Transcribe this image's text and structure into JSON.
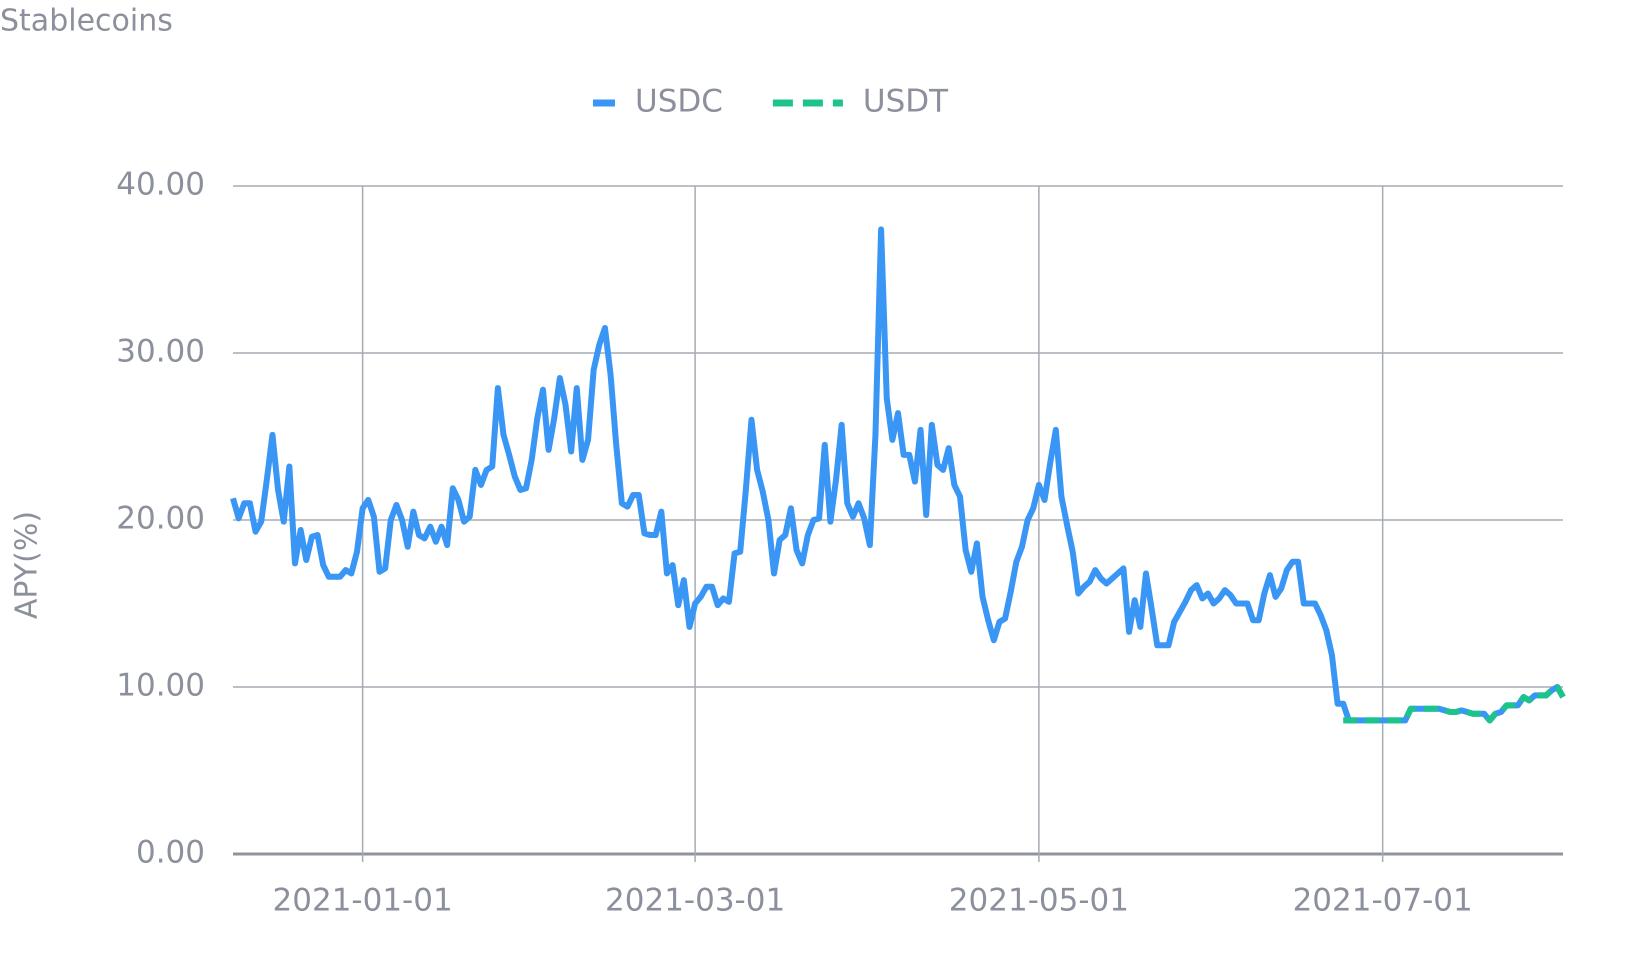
{
  "chart_data": {
    "type": "line",
    "title": "Stablecoins",
    "y_label": "APY(%)",
    "legend": "top",
    "grid": true,
    "xlim": [
      "2020-12-09",
      "2021-08-02"
    ],
    "xticks": [
      "2021-01-01",
      "2021-03-01",
      "2021-05-01",
      "2021-07-01"
    ],
    "ylim": [
      0,
      40
    ],
    "yticks": [
      {
        "value": 0,
        "label": "0.00"
      },
      {
        "value": 10,
        "label": "10.00"
      },
      {
        "value": 20,
        "label": "20.00"
      },
      {
        "value": 30,
        "label": "30.00"
      },
      {
        "value": 40,
        "label": "40.00"
      }
    ],
    "x": [
      "2020-12-09",
      "2020-12-10",
      "2020-12-11",
      "2020-12-12",
      "2020-12-13",
      "2020-12-14",
      "2020-12-15",
      "2020-12-16",
      "2020-12-17",
      "2020-12-18",
      "2020-12-19",
      "2020-12-20",
      "2020-12-21",
      "2020-12-22",
      "2020-12-23",
      "2020-12-24",
      "2020-12-25",
      "2020-12-26",
      "2020-12-27",
      "2020-12-28",
      "2020-12-29",
      "2020-12-30",
      "2020-12-31",
      "2021-01-01",
      "2021-01-02",
      "2021-01-03",
      "2021-01-04",
      "2021-01-05",
      "2021-01-06",
      "2021-01-07",
      "2021-01-08",
      "2021-01-09",
      "2021-01-10",
      "2021-01-11",
      "2021-01-12",
      "2021-01-13",
      "2021-01-14",
      "2021-01-15",
      "2021-01-16",
      "2021-01-17",
      "2021-01-18",
      "2021-01-19",
      "2021-01-20",
      "2021-01-21",
      "2021-01-22",
      "2021-01-23",
      "2021-01-24",
      "2021-01-25",
      "2021-01-26",
      "2021-01-27",
      "2021-01-28",
      "2021-01-29",
      "2021-01-30",
      "2021-01-31",
      "2021-02-01",
      "2021-02-02",
      "2021-02-03",
      "2021-02-04",
      "2021-02-05",
      "2021-02-06",
      "2021-02-07",
      "2021-02-08",
      "2021-02-09",
      "2021-02-10",
      "2021-02-11",
      "2021-02-12",
      "2021-02-13",
      "2021-02-14",
      "2021-02-15",
      "2021-02-16",
      "2021-02-17",
      "2021-02-18",
      "2021-02-19",
      "2021-02-20",
      "2021-02-21",
      "2021-02-22",
      "2021-02-23",
      "2021-02-24",
      "2021-02-25",
      "2021-02-26",
      "2021-02-27",
      "2021-02-28",
      "2021-03-01",
      "2021-03-02",
      "2021-03-03",
      "2021-03-04",
      "2021-03-05",
      "2021-03-06",
      "2021-03-07",
      "2021-03-08",
      "2021-03-09",
      "2021-03-10",
      "2021-03-11",
      "2021-03-12",
      "2021-03-13",
      "2021-03-14",
      "2021-03-15",
      "2021-03-16",
      "2021-03-17",
      "2021-03-18",
      "2021-03-19",
      "2021-03-20",
      "2021-03-21",
      "2021-03-22",
      "2021-03-23",
      "2021-03-24",
      "2021-03-25",
      "2021-03-26",
      "2021-03-27",
      "2021-03-28",
      "2021-03-29",
      "2021-03-30",
      "2021-03-31",
      "2021-04-01",
      "2021-04-02",
      "2021-04-03",
      "2021-04-04",
      "2021-04-05",
      "2021-04-06",
      "2021-04-07",
      "2021-04-08",
      "2021-04-09",
      "2021-04-10",
      "2021-04-11",
      "2021-04-12",
      "2021-04-13",
      "2021-04-14",
      "2021-04-15",
      "2021-04-16",
      "2021-04-17",
      "2021-04-18",
      "2021-04-19",
      "2021-04-20",
      "2021-04-21",
      "2021-04-22",
      "2021-04-23",
      "2021-04-24",
      "2021-04-25",
      "2021-04-26",
      "2021-04-27",
      "2021-04-28",
      "2021-04-29",
      "2021-04-30",
      "2021-05-01",
      "2021-05-02",
      "2021-05-03",
      "2021-05-04",
      "2021-05-05",
      "2021-05-06",
      "2021-05-07",
      "2021-05-08",
      "2021-05-09",
      "2021-05-10",
      "2021-05-11",
      "2021-05-12",
      "2021-05-13",
      "2021-05-14",
      "2021-05-15",
      "2021-05-16",
      "2021-05-17",
      "2021-05-18",
      "2021-05-19",
      "2021-05-20",
      "2021-05-21",
      "2021-05-22",
      "2021-05-23",
      "2021-05-24",
      "2021-05-25",
      "2021-05-26",
      "2021-05-27",
      "2021-05-28",
      "2021-05-29",
      "2021-05-30",
      "2021-05-31",
      "2021-06-01",
      "2021-06-02",
      "2021-06-03",
      "2021-06-04",
      "2021-06-05",
      "2021-06-06",
      "2021-06-07",
      "2021-06-08",
      "2021-06-09",
      "2021-06-10",
      "2021-06-11",
      "2021-06-12",
      "2021-06-13",
      "2021-06-14",
      "2021-06-15",
      "2021-06-16",
      "2021-06-17",
      "2021-06-18",
      "2021-06-19",
      "2021-06-20",
      "2021-06-21",
      "2021-06-22",
      "2021-06-23",
      "2021-06-24",
      "2021-06-25",
      "2021-06-26",
      "2021-06-27",
      "2021-06-28",
      "2021-06-29",
      "2021-06-30",
      "2021-07-01",
      "2021-07-02",
      "2021-07-03",
      "2021-07-04",
      "2021-07-05",
      "2021-07-06",
      "2021-07-07",
      "2021-07-08",
      "2021-07-09",
      "2021-07-10",
      "2021-07-11",
      "2021-07-12",
      "2021-07-13",
      "2021-07-14",
      "2021-07-15",
      "2021-07-16",
      "2021-07-17",
      "2021-07-18",
      "2021-07-19",
      "2021-07-20",
      "2021-07-21",
      "2021-07-22",
      "2021-07-23",
      "2021-07-24",
      "2021-07-25",
      "2021-07-26",
      "2021-07-27",
      "2021-07-28",
      "2021-07-29",
      "2021-07-30",
      "2021-07-31",
      "2021-08-01",
      "2021-08-02"
    ],
    "series": [
      {
        "name": "USDC",
        "color": "#3a96f5",
        "line_style": "solid",
        "values": [
          21.3,
          20.1,
          21.0,
          21.0,
          19.3,
          19.9,
          22.4,
          25.1,
          21.8,
          19.9,
          23.2,
          17.4,
          19.4,
          17.6,
          19.0,
          19.1,
          17.3,
          16.6,
          16.6,
          16.6,
          17.0,
          16.8,
          18.1,
          20.7,
          21.2,
          20.2,
          16.9,
          17.1,
          20.0,
          20.9,
          20.0,
          18.4,
          20.5,
          19.1,
          18.9,
          19.6,
          18.7,
          19.6,
          18.5,
          21.9,
          21.2,
          19.9,
          20.2,
          23.0,
          22.1,
          23.0,
          23.2,
          27.9,
          25.1,
          23.9,
          22.6,
          21.8,
          21.9,
          23.6,
          26.1,
          27.8,
          24.2,
          26.1,
          28.5,
          26.9,
          24.1,
          27.9,
          23.6,
          24.8,
          29.0,
          30.5,
          31.5,
          28.7,
          24.5,
          21.0,
          20.8,
          21.5,
          21.5,
          19.2,
          19.1,
          19.1,
          20.5,
          16.8,
          17.3,
          14.9,
          16.4,
          13.6,
          15.0,
          15.4,
          16.0,
          16.0,
          14.9,
          15.3,
          15.1,
          18.0,
          18.1,
          21.8,
          26.0,
          23.0,
          21.7,
          20.0,
          16.8,
          18.8,
          19.1,
          20.7,
          18.2,
          17.4,
          19.1,
          20.0,
          20.1,
          24.5,
          19.9,
          22.4,
          25.7,
          21.0,
          20.2,
          21.0,
          20.1,
          18.5,
          25.1,
          37.4,
          27.3,
          24.8,
          26.4,
          23.9,
          23.9,
          22.3,
          25.4,
          20.3,
          25.7,
          23.3,
          23.0,
          24.3,
          22.1,
          21.4,
          18.2,
          16.9,
          18.6,
          15.4,
          14.0,
          12.8,
          13.9,
          14.1,
          15.7,
          17.5,
          18.4,
          20.0,
          20.7,
          22.1,
          21.2,
          23.4,
          25.4,
          21.4,
          19.7,
          18.1,
          15.6,
          16.0,
          16.3,
          17.0,
          16.5,
          16.2,
          16.5,
          16.8,
          17.1,
          13.3,
          15.2,
          13.6,
          16.8,
          14.7,
          12.5,
          12.5,
          12.5,
          13.9,
          14.5,
          15.1,
          15.8,
          16.1,
          15.3,
          15.6,
          15.0,
          15.3,
          15.8,
          15.5,
          15.0,
          15.0,
          15.0,
          14.0,
          14.0,
          15.6,
          16.7,
          15.4,
          15.9,
          17.0,
          17.5,
          17.5,
          15.0,
          15.0,
          15.0,
          14.3,
          13.4,
          11.9,
          9.0,
          9.0,
          8.0,
          8.0,
          8.0,
          8.0,
          8.0,
          8.0,
          8.0,
          8.0,
          8.0,
          8.0,
          8.0,
          8.7,
          8.7,
          8.7,
          8.7,
          8.7,
          8.7,
          8.6,
          8.5,
          8.5,
          8.6,
          8.5,
          8.4,
          8.4,
          8.4,
          8.0,
          8.4,
          8.5,
          8.9,
          8.9,
          8.9,
          9.4,
          9.2,
          9.5,
          9.5,
          9.5,
          9.8,
          10.0,
          9.4
        ]
      },
      {
        "name": "USDT",
        "color": "#1cc48c",
        "line_style": "dashed",
        "values": [
          null,
          null,
          null,
          null,
          null,
          null,
          null,
          null,
          null,
          null,
          null,
          null,
          null,
          null,
          null,
          null,
          null,
          null,
          null,
          null,
          null,
          null,
          null,
          null,
          null,
          null,
          null,
          null,
          null,
          null,
          null,
          null,
          null,
          null,
          null,
          null,
          null,
          null,
          null,
          null,
          null,
          null,
          null,
          null,
          null,
          null,
          null,
          null,
          null,
          null,
          null,
          null,
          null,
          null,
          null,
          null,
          null,
          null,
          null,
          null,
          null,
          null,
          null,
          null,
          null,
          null,
          null,
          null,
          null,
          null,
          null,
          null,
          null,
          null,
          null,
          null,
          null,
          null,
          null,
          null,
          null,
          null,
          null,
          null,
          null,
          null,
          null,
          null,
          null,
          null,
          null,
          null,
          null,
          null,
          null,
          null,
          null,
          null,
          null,
          null,
          null,
          null,
          null,
          null,
          null,
          null,
          null,
          null,
          null,
          null,
          null,
          null,
          null,
          null,
          null,
          null,
          null,
          null,
          null,
          null,
          null,
          null,
          null,
          null,
          null,
          null,
          null,
          null,
          null,
          null,
          null,
          null,
          null,
          null,
          null,
          null,
          null,
          null,
          null,
          null,
          null,
          null,
          null,
          null,
          null,
          null,
          null,
          null,
          null,
          null,
          null,
          null,
          null,
          null,
          null,
          null,
          null,
          null,
          null,
          null,
          null,
          null,
          null,
          null,
          null,
          null,
          null,
          null,
          null,
          null,
          null,
          null,
          null,
          null,
          null,
          null,
          null,
          null,
          null,
          null,
          null,
          null,
          null,
          null,
          null,
          null,
          null,
          null,
          null,
          null,
          null,
          null,
          null,
          null,
          null,
          null,
          null,
          8.0,
          8.0,
          8.0,
          8.0,
          8.0,
          8.0,
          8.0,
          8.0,
          8.0,
          8.0,
          8.0,
          8.0,
          8.7,
          8.7,
          8.7,
          8.7,
          8.7,
          8.7,
          8.6,
          8.5,
          8.5,
          8.6,
          8.5,
          8.4,
          8.4,
          8.4,
          8.0,
          8.4,
          8.5,
          8.9,
          8.9,
          8.9,
          9.4,
          9.2,
          9.5,
          9.5,
          9.5,
          9.8,
          10.0,
          9.4
        ]
      }
    ]
  }
}
